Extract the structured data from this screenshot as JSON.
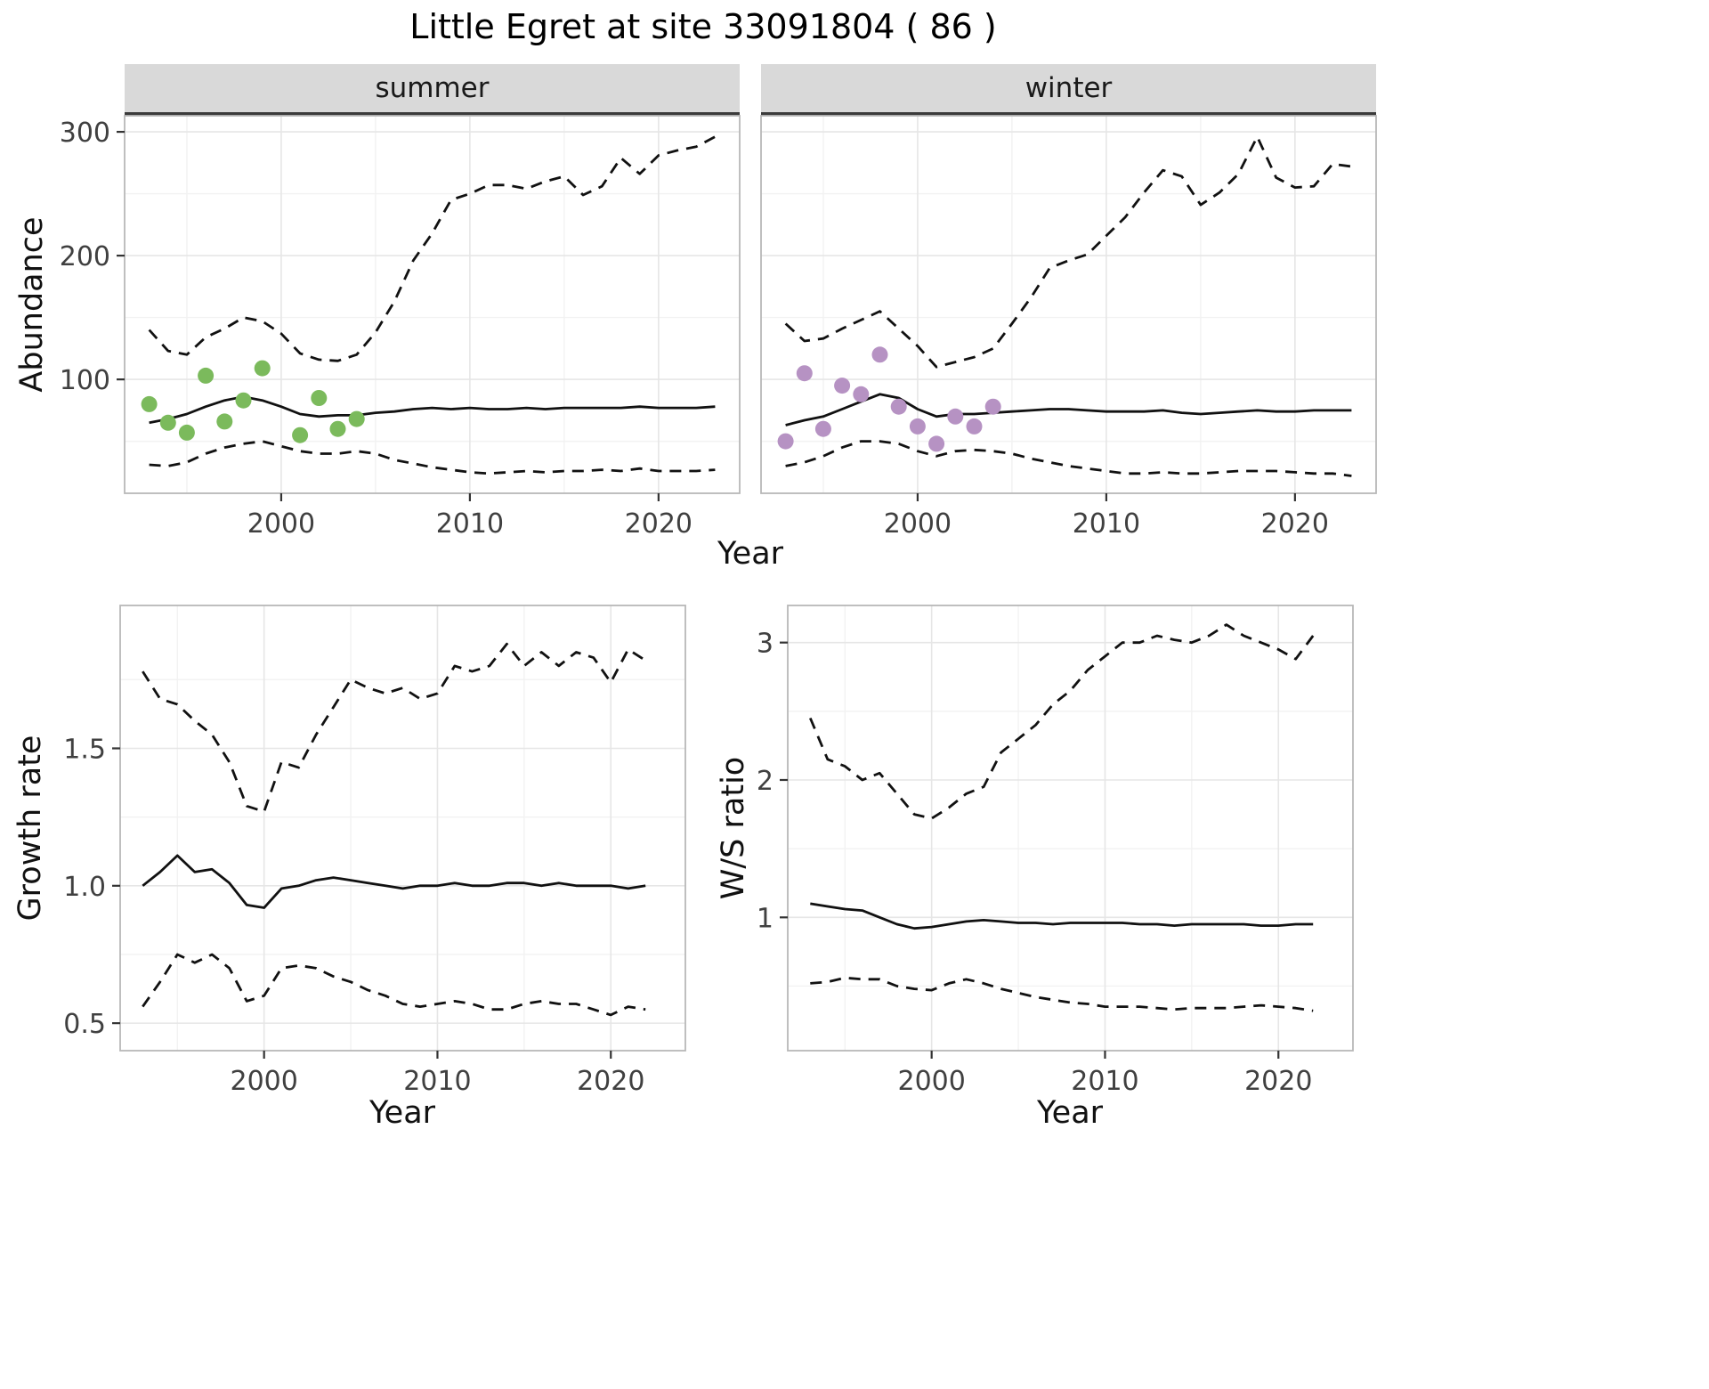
{
  "title": "Little Egret at site 33091804 ( 86 )",
  "colors": {
    "summer_points": "#7BBA5C",
    "winter_points": "#B692C3",
    "line": "#111111",
    "strip_bg": "#D9D9D9",
    "grid_major": "#E6E6E6",
    "grid_minor": "#F2F2F2",
    "panel_border": "#B8B8B8"
  },
  "chart_data": [
    {
      "type": "line",
      "facet": "summer",
      "title": "summer",
      "xlabel": "Year",
      "ylabel": "Abundance",
      "xlim": [
        1991.7,
        2024.3
      ],
      "ylim": [
        8,
        313
      ],
      "grid": true,
      "legend": "none",
      "xticks": [
        {
          "v": 2000,
          "label": "2000"
        },
        {
          "v": 2010,
          "label": "2010"
        },
        {
          "v": 2020,
          "label": "2020"
        }
      ],
      "yticks": [
        {
          "v": 100,
          "label": "100"
        },
        {
          "v": 200,
          "label": "200"
        },
        {
          "v": 300,
          "label": "300"
        }
      ],
      "series": [
        {
          "name": "lower_ci",
          "style": "dashed",
          "x": [
            1993,
            1994,
            1995,
            1996,
            1997,
            1998,
            1999,
            2000,
            2001,
            2002,
            2003,
            2004,
            2005,
            2006,
            2007,
            2008,
            2009,
            2010,
            2011,
            2012,
            2013,
            2014,
            2015,
            2016,
            2017,
            2018,
            2019,
            2020,
            2021,
            2022,
            2023
          ],
          "values": [
            31,
            30,
            33,
            40,
            45,
            48,
            50,
            46,
            42,
            40,
            40,
            42,
            40,
            35,
            32,
            29,
            27,
            25,
            24,
            25,
            26,
            25,
            26,
            26,
            27,
            26,
            28,
            26,
            26,
            26,
            27
          ]
        },
        {
          "name": "upper_ci",
          "style": "dashed",
          "x": [
            1993,
            1994,
            1995,
            1996,
            1997,
            1998,
            1999,
            2000,
            2001,
            2002,
            2003,
            2004,
            2005,
            2006,
            2007,
            2008,
            2009,
            2010,
            2011,
            2012,
            2013,
            2014,
            2015,
            2016,
            2017,
            2018,
            2019,
            2020,
            2021,
            2022,
            2023
          ],
          "values": [
            140,
            123,
            120,
            134,
            141,
            150,
            147,
            137,
            121,
            116,
            115,
            120,
            138,
            163,
            196,
            218,
            245,
            250,
            257,
            257,
            254,
            260,
            264,
            249,
            256,
            279,
            266,
            281,
            285,
            288,
            296
          ]
        },
        {
          "name": "median",
          "style": "solid",
          "x": [
            1993,
            1994,
            1995,
            1996,
            1997,
            1998,
            1999,
            2000,
            2001,
            2002,
            2003,
            2004,
            2005,
            2006,
            2007,
            2008,
            2009,
            2010,
            2011,
            2012,
            2013,
            2014,
            2015,
            2016,
            2017,
            2018,
            2019,
            2020,
            2021,
            2022,
            2023
          ],
          "values": [
            65,
            68,
            72,
            78,
            83,
            86,
            83,
            78,
            72,
            70,
            71,
            71,
            73,
            74,
            76,
            77,
            76,
            77,
            76,
            76,
            77,
            76,
            77,
            77,
            77,
            77,
            78,
            77,
            77,
            77,
            78
          ]
        },
        {
          "name": "observed_counts",
          "style": "points",
          "color": "#7BBA5C",
          "x": [
            1993,
            1994,
            1995,
            1996,
            1997,
            1998,
            1999,
            2001,
            2002,
            2003,
            2004
          ],
          "values": [
            80,
            65,
            57,
            103,
            66,
            83,
            109,
            55,
            85,
            60,
            68
          ]
        }
      ]
    },
    {
      "type": "line",
      "facet": "winter",
      "title": "winter",
      "xlabel": "Year",
      "ylabel": "Abundance",
      "xlim": [
        1991.7,
        2024.3
      ],
      "ylim": [
        8,
        313
      ],
      "grid": true,
      "legend": "none",
      "xticks": [
        {
          "v": 2000,
          "label": "2000"
        },
        {
          "v": 2010,
          "label": "2010"
        },
        {
          "v": 2020,
          "label": "2020"
        }
      ],
      "yticks": [
        {
          "v": 100,
          "label": "100"
        },
        {
          "v": 200,
          "label": "200"
        },
        {
          "v": 300,
          "label": "300"
        }
      ],
      "series": [
        {
          "name": "lower_ci",
          "style": "dashed",
          "x": [
            1993,
            1994,
            1995,
            1996,
            1997,
            1998,
            1999,
            2000,
            2001,
            2002,
            2003,
            2004,
            2005,
            2006,
            2007,
            2008,
            2009,
            2010,
            2011,
            2012,
            2013,
            2014,
            2015,
            2016,
            2017,
            2018,
            2019,
            2020,
            2021,
            2022,
            2023
          ],
          "values": [
            30,
            33,
            38,
            45,
            50,
            50,
            48,
            42,
            38,
            42,
            43,
            42,
            40,
            36,
            33,
            30,
            28,
            26,
            24,
            24,
            25,
            24,
            24,
            25,
            26,
            26,
            26,
            25,
            24,
            24,
            22
          ]
        },
        {
          "name": "upper_ci",
          "style": "dashed",
          "x": [
            1993,
            1994,
            1995,
            1996,
            1997,
            1998,
            1999,
            2000,
            2001,
            2002,
            2003,
            2004,
            2005,
            2006,
            2007,
            2008,
            2009,
            2010,
            2011,
            2012,
            2013,
            2014,
            2015,
            2016,
            2017,
            2018,
            2019,
            2020,
            2021,
            2022,
            2023
          ],
          "values": [
            145,
            131,
            133,
            141,
            148,
            155,
            141,
            127,
            110,
            114,
            118,
            125,
            145,
            166,
            190,
            196,
            201,
            216,
            231,
            251,
            269,
            264,
            241,
            251,
            266,
            296,
            263,
            255,
            256,
            274,
            272
          ]
        },
        {
          "name": "median",
          "style": "solid",
          "x": [
            1993,
            1994,
            1995,
            1996,
            1997,
            1998,
            1999,
            2000,
            2001,
            2002,
            2003,
            2004,
            2005,
            2006,
            2007,
            2008,
            2009,
            2010,
            2011,
            2012,
            2013,
            2014,
            2015,
            2016,
            2017,
            2018,
            2019,
            2020,
            2021,
            2022,
            2023
          ],
          "values": [
            63,
            67,
            70,
            76,
            82,
            88,
            85,
            76,
            70,
            72,
            72,
            73,
            74,
            75,
            76,
            76,
            75,
            74,
            74,
            74,
            75,
            73,
            72,
            73,
            74,
            75,
            74,
            74,
            75,
            75,
            75
          ]
        },
        {
          "name": "observed_counts",
          "style": "points",
          "color": "#B692C3",
          "x": [
            1993,
            1994,
            1995,
            1996,
            1997,
            1998,
            1999,
            2000,
            2001,
            2002,
            2003,
            2004
          ],
          "values": [
            50,
            105,
            60,
            95,
            88,
            120,
            78,
            62,
            48,
            70,
            62,
            78
          ]
        }
      ]
    },
    {
      "type": "line",
      "facet": "growth_rate",
      "title": "",
      "xlabel": "Year",
      "ylabel": "Growth rate",
      "xlim": [
        1991.7,
        2024.3
      ],
      "ylim": [
        0.4,
        2.02
      ],
      "grid": true,
      "legend": "none",
      "xticks": [
        {
          "v": 2000,
          "label": "2000"
        },
        {
          "v": 2010,
          "label": "2010"
        },
        {
          "v": 2020,
          "label": "2020"
        }
      ],
      "yticks": [
        {
          "v": 0.5,
          "label": "0.5"
        },
        {
          "v": 1.0,
          "label": "1.0"
        },
        {
          "v": 1.5,
          "label": "1.5"
        }
      ],
      "series": [
        {
          "name": "lower_ci",
          "style": "dashed",
          "x": [
            1993,
            1994,
            1995,
            1996,
            1997,
            1998,
            1999,
            2000,
            2001,
            2002,
            2003,
            2004,
            2005,
            2006,
            2007,
            2008,
            2009,
            2010,
            2011,
            2012,
            2013,
            2014,
            2015,
            2016,
            2017,
            2018,
            2019,
            2020,
            2021,
            2022
          ],
          "values": [
            0.56,
            0.65,
            0.75,
            0.72,
            0.75,
            0.7,
            0.58,
            0.6,
            0.7,
            0.71,
            0.7,
            0.67,
            0.65,
            0.62,
            0.6,
            0.57,
            0.56,
            0.57,
            0.58,
            0.57,
            0.55,
            0.55,
            0.57,
            0.58,
            0.57,
            0.57,
            0.55,
            0.53,
            0.56,
            0.55
          ]
        },
        {
          "name": "upper_ci",
          "style": "dashed",
          "x": [
            1993,
            1994,
            1995,
            1996,
            1997,
            1998,
            1999,
            2000,
            2001,
            2002,
            2003,
            2004,
            2005,
            2006,
            2007,
            2008,
            2009,
            2010,
            2011,
            2012,
            2013,
            2014,
            2015,
            2016,
            2017,
            2018,
            2019,
            2020,
            2021,
            2022
          ],
          "values": [
            1.78,
            1.68,
            1.66,
            1.6,
            1.55,
            1.45,
            1.29,
            1.27,
            1.45,
            1.43,
            1.55,
            1.65,
            1.75,
            1.72,
            1.7,
            1.72,
            1.68,
            1.7,
            1.8,
            1.78,
            1.8,
            1.88,
            1.8,
            1.85,
            1.8,
            1.85,
            1.83,
            1.74,
            1.86,
            1.82
          ]
        },
        {
          "name": "median",
          "style": "solid",
          "x": [
            1993,
            1994,
            1995,
            1996,
            1997,
            1998,
            1999,
            2000,
            2001,
            2002,
            2003,
            2004,
            2005,
            2006,
            2007,
            2008,
            2009,
            2010,
            2011,
            2012,
            2013,
            2014,
            2015,
            2016,
            2017,
            2018,
            2019,
            2020,
            2021,
            2022
          ],
          "values": [
            1.0,
            1.05,
            1.11,
            1.05,
            1.06,
            1.01,
            0.93,
            0.92,
            0.99,
            1.0,
            1.02,
            1.03,
            1.02,
            1.01,
            1.0,
            0.99,
            1.0,
            1.0,
            1.01,
            1.0,
            1.0,
            1.01,
            1.01,
            1.0,
            1.01,
            1.0,
            1.0,
            1.0,
            0.99,
            1.0
          ]
        }
      ]
    },
    {
      "type": "line",
      "facet": "ws_ratio",
      "title": "",
      "xlabel": "Year",
      "ylabel": "W/S ratio",
      "xlim": [
        1991.7,
        2024.3
      ],
      "ylim": [
        0.03,
        3.27
      ],
      "grid": true,
      "legend": "none",
      "xticks": [
        {
          "v": 2000,
          "label": "2000"
        },
        {
          "v": 2010,
          "label": "2010"
        },
        {
          "v": 2020,
          "label": "2020"
        }
      ],
      "yticks": [
        {
          "v": 1,
          "label": "1"
        },
        {
          "v": 2,
          "label": "2"
        },
        {
          "v": 3,
          "label": "3"
        }
      ],
      "series": [
        {
          "name": "lower_ci",
          "style": "dashed",
          "x": [
            1993,
            1994,
            1995,
            1996,
            1997,
            1998,
            1999,
            2000,
            2001,
            2002,
            2003,
            2004,
            2005,
            2006,
            2007,
            2008,
            2009,
            2010,
            2011,
            2012,
            2013,
            2014,
            2015,
            2016,
            2017,
            2018,
            2019,
            2020,
            2021,
            2022
          ],
          "values": [
            0.52,
            0.53,
            0.56,
            0.55,
            0.55,
            0.5,
            0.48,
            0.47,
            0.52,
            0.55,
            0.52,
            0.48,
            0.45,
            0.42,
            0.4,
            0.38,
            0.37,
            0.35,
            0.35,
            0.35,
            0.34,
            0.33,
            0.34,
            0.34,
            0.34,
            0.35,
            0.36,
            0.35,
            0.34,
            0.32
          ]
        },
        {
          "name": "upper_ci",
          "style": "dashed",
          "x": [
            1993,
            1994,
            1995,
            1996,
            1997,
            1998,
            1999,
            2000,
            2001,
            2002,
            2003,
            2004,
            2005,
            2006,
            2007,
            2008,
            2009,
            2010,
            2011,
            2012,
            2013,
            2014,
            2015,
            2016,
            2017,
            2018,
            2019,
            2020,
            2021,
            2022
          ],
          "values": [
            2.45,
            2.15,
            2.1,
            2.0,
            2.05,
            1.9,
            1.75,
            1.72,
            1.8,
            1.9,
            1.95,
            2.2,
            2.3,
            2.4,
            2.55,
            2.65,
            2.8,
            2.9,
            3.0,
            3.0,
            3.05,
            3.02,
            3.0,
            3.05,
            3.13,
            3.05,
            3.0,
            2.95,
            2.88,
            3.05
          ]
        },
        {
          "name": "median",
          "style": "solid",
          "x": [
            1993,
            1994,
            1995,
            1996,
            1997,
            1998,
            1999,
            2000,
            2001,
            2002,
            2003,
            2004,
            2005,
            2006,
            2007,
            2008,
            2009,
            2010,
            2011,
            2012,
            2013,
            2014,
            2015,
            2016,
            2017,
            2018,
            2019,
            2020,
            2021,
            2022
          ],
          "values": [
            1.1,
            1.08,
            1.06,
            1.05,
            1.0,
            0.95,
            0.92,
            0.93,
            0.95,
            0.97,
            0.98,
            0.97,
            0.96,
            0.96,
            0.95,
            0.96,
            0.96,
            0.96,
            0.96,
            0.95,
            0.95,
            0.94,
            0.95,
            0.95,
            0.95,
            0.95,
            0.94,
            0.94,
            0.95,
            0.95
          ]
        }
      ]
    }
  ]
}
